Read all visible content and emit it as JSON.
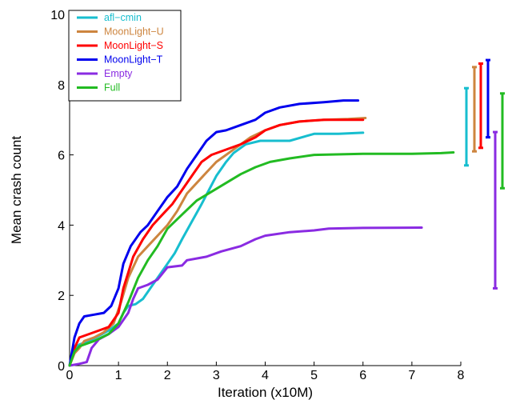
{
  "chart_data": {
    "type": "line",
    "title": "",
    "xlabel": "Iteration (x10M)",
    "ylabel": "Mean crash count",
    "xlim": [
      0,
      8
    ],
    "ylim": [
      0,
      10
    ],
    "x_ticks": [
      0,
      1,
      2,
      3,
      4,
      5,
      6,
      7,
      8
    ],
    "y_ticks": [
      0,
      2,
      4,
      6,
      8,
      10
    ],
    "x_tick_labels": [
      "0",
      "1",
      "2",
      "3",
      "4",
      "5",
      "6",
      "7",
      "8"
    ],
    "y_tick_labels": [
      "0",
      "2",
      "4",
      "6",
      "8",
      "10"
    ],
    "grid": false,
    "legend_position": "top-left",
    "series": [
      {
        "name": "afl−cmin",
        "color": "#17becf",
        "points": [
          [
            0,
            0
          ],
          [
            0.1,
            0.5
          ],
          [
            0.2,
            0.6
          ],
          [
            0.4,
            0.7
          ],
          [
            0.6,
            0.85
          ],
          [
            0.8,
            1.0
          ],
          [
            1.0,
            1.2
          ],
          [
            1.1,
            1.5
          ],
          [
            1.2,
            1.7
          ],
          [
            1.35,
            1.75
          ],
          [
            1.5,
            1.9
          ],
          [
            1.7,
            2.3
          ],
          [
            1.85,
            2.6
          ],
          [
            2.0,
            2.9
          ],
          [
            2.15,
            3.2
          ],
          [
            2.3,
            3.6
          ],
          [
            2.5,
            4.1
          ],
          [
            2.7,
            4.6
          ],
          [
            2.85,
            5.0
          ],
          [
            3.0,
            5.4
          ],
          [
            3.2,
            5.8
          ],
          [
            3.35,
            6.05
          ],
          [
            3.6,
            6.3
          ],
          [
            3.9,
            6.4
          ],
          [
            4.5,
            6.4
          ],
          [
            5.0,
            6.6
          ],
          [
            5.5,
            6.6
          ],
          [
            6.0,
            6.63
          ]
        ],
        "errorbar": [
          5.7,
          7.9
        ]
      },
      {
        "name": "MoonLight−U",
        "color": "#cd853f",
        "points": [
          [
            0,
            0
          ],
          [
            0.1,
            0.35
          ],
          [
            0.2,
            0.5
          ],
          [
            0.3,
            0.7
          ],
          [
            0.5,
            0.8
          ],
          [
            0.7,
            0.95
          ],
          [
            0.9,
            1.2
          ],
          [
            1.05,
            1.8
          ],
          [
            1.2,
            2.5
          ],
          [
            1.4,
            3.1
          ],
          [
            1.6,
            3.4
          ],
          [
            1.8,
            3.7
          ],
          [
            2.0,
            4.0
          ],
          [
            2.2,
            4.4
          ],
          [
            2.4,
            4.9
          ],
          [
            2.6,
            5.2
          ],
          [
            2.8,
            5.5
          ],
          [
            3.0,
            5.8
          ],
          [
            3.2,
            6.0
          ],
          [
            3.4,
            6.2
          ],
          [
            3.7,
            6.5
          ],
          [
            4.0,
            6.7
          ],
          [
            4.3,
            6.85
          ],
          [
            4.7,
            6.95
          ],
          [
            5.2,
            7.0
          ],
          [
            5.7,
            7.02
          ],
          [
            6.05,
            7.05
          ]
        ],
        "errorbar": [
          6.1,
          8.5
        ]
      },
      {
        "name": "MoonLight−S",
        "color": "#ff0000",
        "points": [
          [
            0,
            0
          ],
          [
            0.1,
            0.5
          ],
          [
            0.2,
            0.8
          ],
          [
            0.4,
            0.9
          ],
          [
            0.6,
            1.0
          ],
          [
            0.8,
            1.1
          ],
          [
            1.0,
            1.5
          ],
          [
            1.1,
            2.2
          ],
          [
            1.3,
            3.1
          ],
          [
            1.5,
            3.6
          ],
          [
            1.7,
            4.0
          ],
          [
            1.9,
            4.3
          ],
          [
            2.1,
            4.6
          ],
          [
            2.3,
            5.0
          ],
          [
            2.5,
            5.4
          ],
          [
            2.7,
            5.8
          ],
          [
            2.9,
            6.0
          ],
          [
            3.2,
            6.15
          ],
          [
            3.5,
            6.3
          ],
          [
            3.8,
            6.5
          ],
          [
            4.0,
            6.7
          ],
          [
            4.3,
            6.85
          ],
          [
            4.7,
            6.95
          ],
          [
            5.2,
            7.0
          ],
          [
            5.7,
            7.0
          ],
          [
            6.0,
            7.0
          ]
        ],
        "errorbar": [
          6.2,
          8.6
        ]
      },
      {
        "name": "MoonLight−T",
        "color": "#0000ee",
        "points": [
          [
            0,
            0
          ],
          [
            0.1,
            0.8
          ],
          [
            0.2,
            1.2
          ],
          [
            0.3,
            1.4
          ],
          [
            0.5,
            1.45
          ],
          [
            0.7,
            1.5
          ],
          [
            0.85,
            1.7
          ],
          [
            1.0,
            2.2
          ],
          [
            1.1,
            2.9
          ],
          [
            1.25,
            3.4
          ],
          [
            1.45,
            3.8
          ],
          [
            1.6,
            4.0
          ],
          [
            1.8,
            4.4
          ],
          [
            2.0,
            4.8
          ],
          [
            2.2,
            5.1
          ],
          [
            2.4,
            5.6
          ],
          [
            2.6,
            6.0
          ],
          [
            2.8,
            6.4
          ],
          [
            3.0,
            6.65
          ],
          [
            3.2,
            6.7
          ],
          [
            3.5,
            6.85
          ],
          [
            3.8,
            7.0
          ],
          [
            4.0,
            7.2
          ],
          [
            4.3,
            7.35
          ],
          [
            4.7,
            7.45
          ],
          [
            5.2,
            7.5
          ],
          [
            5.6,
            7.55
          ],
          [
            5.9,
            7.55
          ]
        ],
        "errorbar": [
          6.5,
          8.7
        ]
      },
      {
        "name": "Empty",
        "color": "#8a2be2",
        "points": [
          [
            0,
            0
          ],
          [
            0.2,
            0.05
          ],
          [
            0.35,
            0.1
          ],
          [
            0.45,
            0.5
          ],
          [
            0.6,
            0.75
          ],
          [
            0.8,
            0.9
          ],
          [
            1.0,
            1.1
          ],
          [
            1.2,
            1.5
          ],
          [
            1.3,
            1.9
          ],
          [
            1.4,
            2.2
          ],
          [
            1.6,
            2.3
          ],
          [
            1.8,
            2.45
          ],
          [
            2.0,
            2.8
          ],
          [
            2.3,
            2.85
          ],
          [
            2.4,
            3.0
          ],
          [
            2.8,
            3.1
          ],
          [
            3.1,
            3.25
          ],
          [
            3.5,
            3.4
          ],
          [
            3.8,
            3.6
          ],
          [
            4.0,
            3.7
          ],
          [
            4.5,
            3.8
          ],
          [
            5.0,
            3.85
          ],
          [
            5.3,
            3.9
          ],
          [
            6.0,
            3.92
          ],
          [
            7.2,
            3.93
          ]
        ],
        "errorbar": [
          2.2,
          6.65
        ]
      },
      {
        "name": "Full",
        "color": "#22bb22",
        "points": [
          [
            0,
            0
          ],
          [
            0.1,
            0.4
          ],
          [
            0.2,
            0.55
          ],
          [
            0.5,
            0.7
          ],
          [
            0.8,
            0.9
          ],
          [
            1.0,
            1.2
          ],
          [
            1.2,
            1.8
          ],
          [
            1.4,
            2.5
          ],
          [
            1.6,
            3.0
          ],
          [
            1.8,
            3.4
          ],
          [
            2.0,
            3.9
          ],
          [
            2.3,
            4.3
          ],
          [
            2.6,
            4.7
          ],
          [
            2.9,
            4.95
          ],
          [
            3.2,
            5.2
          ],
          [
            3.5,
            5.45
          ],
          [
            3.8,
            5.65
          ],
          [
            4.1,
            5.8
          ],
          [
            4.5,
            5.9
          ],
          [
            5.0,
            6.0
          ],
          [
            6.0,
            6.03
          ],
          [
            7.0,
            6.03
          ],
          [
            7.6,
            6.05
          ],
          [
            7.85,
            6.07
          ]
        ],
        "errorbar": [
          5.05,
          7.75
        ]
      }
    ]
  }
}
